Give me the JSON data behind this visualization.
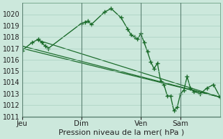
{
  "background_color": "#cce8dc",
  "grid_color": "#a8cfc0",
  "line_color": "#1a6b2a",
  "xlabel": "Pression niveau de la mer( hPa )",
  "ylim": [
    1011,
    1021
  ],
  "ytick_min": 1011,
  "ytick_max": 1020,
  "xtick_labels": [
    "Jeu",
    "Dim",
    "Ven",
    "Sam"
  ],
  "xtick_positions": [
    0,
    36,
    72,
    96
  ],
  "vline_positions": [
    0,
    36,
    72,
    96
  ],
  "total_points": 120,
  "series_main": {
    "x": [
      0,
      6,
      10,
      12,
      14,
      16,
      36,
      38,
      40,
      42,
      50,
      54,
      60,
      64,
      66,
      68,
      70,
      72,
      74,
      76,
      78,
      80,
      82,
      84,
      86,
      88,
      90,
      92,
      94,
      96,
      98,
      100,
      102,
      104,
      108,
      112,
      116,
      120
    ],
    "y": [
      1016.8,
      1017.5,
      1017.8,
      1017.5,
      1017.2,
      1017.0,
      1019.2,
      1019.3,
      1019.4,
      1019.1,
      1020.2,
      1020.5,
      1019.7,
      1018.7,
      1018.2,
      1018.0,
      1017.8,
      1018.3,
      1017.5,
      1016.7,
      1015.8,
      1015.2,
      1015.7,
      1014.1,
      1013.8,
      1012.8,
      1012.8,
      1011.5,
      1011.8,
      1013.0,
      1013.3,
      1014.5,
      1013.5,
      1013.2,
      1013.0,
      1013.5,
      1013.8,
      1012.7
    ]
  },
  "series_trend": [
    {
      "x": [
        0,
        120
      ],
      "y": [
        1017.2,
        1012.7
      ]
    },
    {
      "x": [
        0,
        120
      ],
      "y": [
        1017.0,
        1012.7
      ]
    },
    {
      "x": [
        10,
        120
      ],
      "y": [
        1017.7,
        1012.7
      ]
    }
  ]
}
